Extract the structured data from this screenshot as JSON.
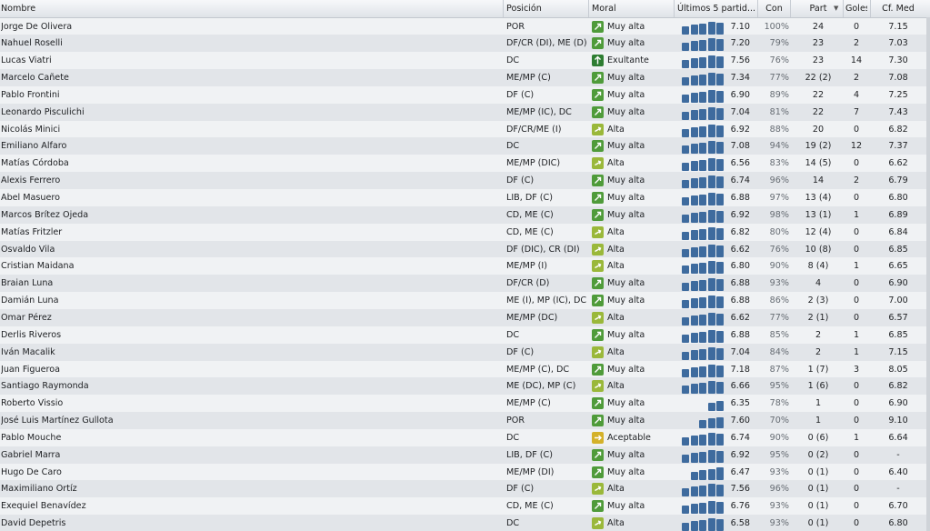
{
  "columns": {
    "name": "Nombre",
    "position": "Posición",
    "moral": "Moral",
    "form": "Últimos 5 partid...",
    "con": "Con",
    "part": "Part",
    "goals": "Goles",
    "rating": "Cf. Med"
  },
  "moral_colors": {
    "Muy alta": "#4f9b3a",
    "Exultante": "#2e7d32",
    "Alta": "#9ab83a",
    "Aceptable": "#d4b12a"
  },
  "form_bar_color": "#3e6b9e",
  "players": [
    {
      "name": "Jorge De Olivera",
      "position": "POR",
      "moral": "Muy alta",
      "form_matches": 5,
      "form_avg": "7.10",
      "con": "100%",
      "part": "24",
      "goals": "0",
      "rating": "7.15"
    },
    {
      "name": "Nahuel Roselli",
      "position": "DF/CR (DI), ME (D)",
      "moral": "Muy alta",
      "form_matches": 5,
      "form_avg": "7.20",
      "con": "79%",
      "part": "23",
      "goals": "2",
      "rating": "7.03"
    },
    {
      "name": "Lucas Viatri",
      "position": "DC",
      "moral": "Exultante",
      "form_matches": 5,
      "form_avg": "7.56",
      "con": "76%",
      "part": "23",
      "goals": "14",
      "rating": "7.30"
    },
    {
      "name": "Marcelo Cañete",
      "position": "ME/MP (C)",
      "moral": "Muy alta",
      "form_matches": 5,
      "form_avg": "7.34",
      "con": "77%",
      "part": "22 (2)",
      "goals": "2",
      "rating": "7.08"
    },
    {
      "name": "Pablo Frontini",
      "position": "DF (C)",
      "moral": "Muy alta",
      "form_matches": 5,
      "form_avg": "6.90",
      "con": "89%",
      "part": "22",
      "goals": "4",
      "rating": "7.25"
    },
    {
      "name": "Leonardo Pisculichi",
      "position": "ME/MP (IC), DC",
      "moral": "Muy alta",
      "form_matches": 5,
      "form_avg": "7.04",
      "con": "81%",
      "part": "22",
      "goals": "7",
      "rating": "7.43"
    },
    {
      "name": "Nicolás Minici",
      "position": "DF/CR/ME (I)",
      "moral": "Alta",
      "form_matches": 5,
      "form_avg": "6.92",
      "con": "88%",
      "part": "20",
      "goals": "0",
      "rating": "6.82"
    },
    {
      "name": "Emiliano Alfaro",
      "position": "DC",
      "moral": "Muy alta",
      "form_matches": 5,
      "form_avg": "7.08",
      "con": "94%",
      "part": "19 (2)",
      "goals": "12",
      "rating": "7.37"
    },
    {
      "name": "Matías Córdoba",
      "position": "ME/MP (DIC)",
      "moral": "Alta",
      "form_matches": 5,
      "form_avg": "6.56",
      "con": "83%",
      "part": "14 (5)",
      "goals": "0",
      "rating": "6.62"
    },
    {
      "name": "Alexis Ferrero",
      "position": "DF (C)",
      "moral": "Muy alta",
      "form_matches": 5,
      "form_avg": "6.74",
      "con": "96%",
      "part": "14",
      "goals": "2",
      "rating": "6.79"
    },
    {
      "name": "Abel Masuero",
      "position": "LIB, DF (C)",
      "moral": "Muy alta",
      "form_matches": 5,
      "form_avg": "6.88",
      "con": "97%",
      "part": "13 (4)",
      "goals": "0",
      "rating": "6.80"
    },
    {
      "name": "Marcos Brítez Ojeda",
      "position": "CD, ME (C)",
      "moral": "Muy alta",
      "form_matches": 5,
      "form_avg": "6.92",
      "con": "98%",
      "part": "13 (1)",
      "goals": "1",
      "rating": "6.89"
    },
    {
      "name": "Matías Fritzler",
      "position": "CD, ME (C)",
      "moral": "Alta",
      "form_matches": 5,
      "form_avg": "6.82",
      "con": "80%",
      "part": "12 (4)",
      "goals": "0",
      "rating": "6.84"
    },
    {
      "name": "Osvaldo Vila",
      "position": "DF (DIC), CR (DI)",
      "moral": "Alta",
      "form_matches": 5,
      "form_avg": "6.62",
      "con": "76%",
      "part": "10 (8)",
      "goals": "0",
      "rating": "6.85"
    },
    {
      "name": "Cristian Maidana",
      "position": "ME/MP (I)",
      "moral": "Alta",
      "form_matches": 5,
      "form_avg": "6.80",
      "con": "90%",
      "part": "8 (4)",
      "goals": "1",
      "rating": "6.65"
    },
    {
      "name": "Braian Luna",
      "position": "DF/CR (D)",
      "moral": "Muy alta",
      "form_matches": 5,
      "form_avg": "6.88",
      "con": "93%",
      "part": "4",
      "goals": "0",
      "rating": "6.90"
    },
    {
      "name": "Damián Luna",
      "position": "ME (I), MP (IC), DC",
      "moral": "Muy alta",
      "form_matches": 5,
      "form_avg": "6.88",
      "con": "86%",
      "part": "2 (3)",
      "goals": "0",
      "rating": "7.00"
    },
    {
      "name": "Omar Pérez",
      "position": "ME/MP (DC)",
      "moral": "Alta",
      "form_matches": 5,
      "form_avg": "6.62",
      "con": "77%",
      "part": "2 (1)",
      "goals": "0",
      "rating": "6.57"
    },
    {
      "name": "Derlis Riveros",
      "position": "DC",
      "moral": "Muy alta",
      "form_matches": 5,
      "form_avg": "6.88",
      "con": "85%",
      "part": "2",
      "goals": "1",
      "rating": "6.85"
    },
    {
      "name": "Iván Macalik",
      "position": "DF (C)",
      "moral": "Alta",
      "form_matches": 5,
      "form_avg": "7.04",
      "con": "84%",
      "part": "2",
      "goals": "1",
      "rating": "7.15"
    },
    {
      "name": "Juan Figueroa",
      "position": "ME/MP (C), DC",
      "moral": "Muy alta",
      "form_matches": 5,
      "form_avg": "7.18",
      "con": "87%",
      "part": "1 (7)",
      "goals": "3",
      "rating": "8.05"
    },
    {
      "name": "Santiago Raymonda",
      "position": "ME (DC), MP (C)",
      "moral": "Alta",
      "form_matches": 5,
      "form_avg": "6.66",
      "con": "95%",
      "part": "1 (6)",
      "goals": "0",
      "rating": "6.82"
    },
    {
      "name": "Roberto Vissio",
      "position": "ME/MP (C)",
      "moral": "Muy alta",
      "form_matches": 2,
      "form_avg": "6.35",
      "con": "78%",
      "part": "1",
      "goals": "0",
      "rating": "6.90"
    },
    {
      "name": "José Luis Martínez Gullota",
      "position": "POR",
      "moral": "Muy alta",
      "form_matches": 3,
      "form_avg": "7.60",
      "con": "70%",
      "part": "1",
      "goals": "0",
      "rating": "9.10"
    },
    {
      "name": "Pablo Mouche",
      "position": "DC",
      "moral": "Aceptable",
      "form_matches": 5,
      "form_avg": "6.74",
      "con": "90%",
      "part": "0 (6)",
      "goals": "1",
      "rating": "6.64"
    },
    {
      "name": "Gabriel Marra",
      "position": "LIB, DF (C)",
      "moral": "Muy alta",
      "form_matches": 5,
      "form_avg": "6.92",
      "con": "95%",
      "part": "0 (2)",
      "goals": "0",
      "rating": "-"
    },
    {
      "name": "Hugo De Caro",
      "position": "ME/MP (DI)",
      "moral": "Muy alta",
      "form_matches": 4,
      "form_avg": "6.47",
      "con": "93%",
      "part": "0 (1)",
      "goals": "0",
      "rating": "6.40"
    },
    {
      "name": "Maximiliano Ortíz",
      "position": "DF (C)",
      "moral": "Alta",
      "form_matches": 5,
      "form_avg": "7.56",
      "con": "96%",
      "part": "0 (1)",
      "goals": "0",
      "rating": "-"
    },
    {
      "name": "Exequiel Benavídez",
      "position": "CD, ME (C)",
      "moral": "Muy alta",
      "form_matches": 5,
      "form_avg": "6.76",
      "con": "93%",
      "part": "0 (1)",
      "goals": "0",
      "rating": "6.70"
    },
    {
      "name": "David Depetris",
      "position": "DC",
      "moral": "Alta",
      "form_matches": 5,
      "form_avg": "6.58",
      "con": "93%",
      "part": "0 (1)",
      "goals": "0",
      "rating": "6.80"
    }
  ]
}
